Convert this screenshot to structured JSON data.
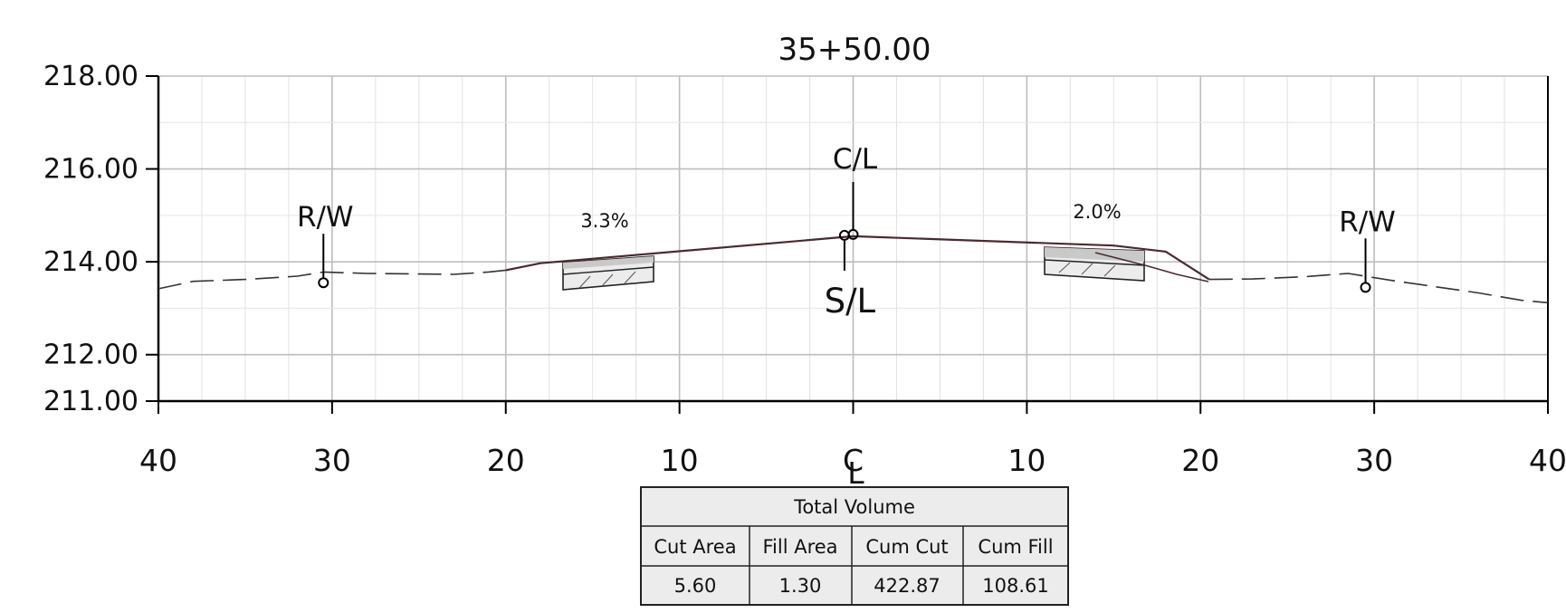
{
  "title": "35+50.00",
  "chart_data": {
    "type": "cross-section",
    "y_ticks": [
      "218.00",
      "216.00",
      "214.00",
      "212.00",
      "211.00"
    ],
    "ylim": [
      211,
      218
    ],
    "xlim": [
      -40,
      40
    ],
    "x_ticks": [
      {
        "offset": -40,
        "label": "40"
      },
      {
        "offset": -30,
        "label": "30"
      },
      {
        "offset": -20,
        "label": "20"
      },
      {
        "offset": -10,
        "label": "10"
      },
      {
        "offset": 0,
        "label": "C",
        "sub": "L"
      },
      {
        "offset": 10,
        "label": "10"
      },
      {
        "offset": 20,
        "label": "20"
      },
      {
        "offset": 30,
        "label": "30"
      },
      {
        "offset": 40,
        "label": "40"
      }
    ],
    "grid": true,
    "existing_ground": [
      [
        -40,
        213.42
      ],
      [
        -38,
        213.58
      ],
      [
        -35,
        213.62
      ],
      [
        -32,
        213.69
      ],
      [
        -30.5,
        213.78
      ],
      [
        -28,
        213.75
      ],
      [
        -23,
        213.73
      ],
      [
        -21,
        213.78
      ],
      [
        -20,
        213.82
      ]
    ],
    "existing_ground_right": [
      [
        20.5,
        213.62
      ],
      [
        23,
        213.63
      ],
      [
        26,
        213.68
      ],
      [
        28.5,
        213.75
      ],
      [
        31,
        213.6
      ],
      [
        36,
        213.33
      ],
      [
        38.5,
        213.17
      ],
      [
        40,
        213.12
      ]
    ],
    "proposed": [
      [
        -20,
        213.82
      ],
      [
        -18,
        213.97
      ],
      [
        0,
        214.55
      ],
      [
        15,
        214.35
      ],
      [
        18,
        214.22
      ],
      [
        20.5,
        213.62
      ]
    ],
    "annotations": [
      {
        "text": "R/W",
        "offset": -30.5,
        "elev": 213.55
      },
      {
        "text": "R/W",
        "offset": 29.5,
        "elev": 213.45
      },
      {
        "text": "C/L",
        "offset": 0.0,
        "elev": 214.55
      },
      {
        "text": "S/L",
        "offset": -0.5,
        "elev": 214.55
      }
    ],
    "slopes": [
      {
        "text": "3.3%",
        "side": "left"
      },
      {
        "text": "2.0%",
        "side": "right"
      }
    ]
  },
  "volume_table": {
    "header": "Total Volume",
    "columns": [
      "Cut Area",
      "Fill Area",
      "Cum Cut",
      "Cum Fill"
    ],
    "values": [
      "5.60",
      "1.30",
      "422.87",
      "108.61"
    ]
  }
}
